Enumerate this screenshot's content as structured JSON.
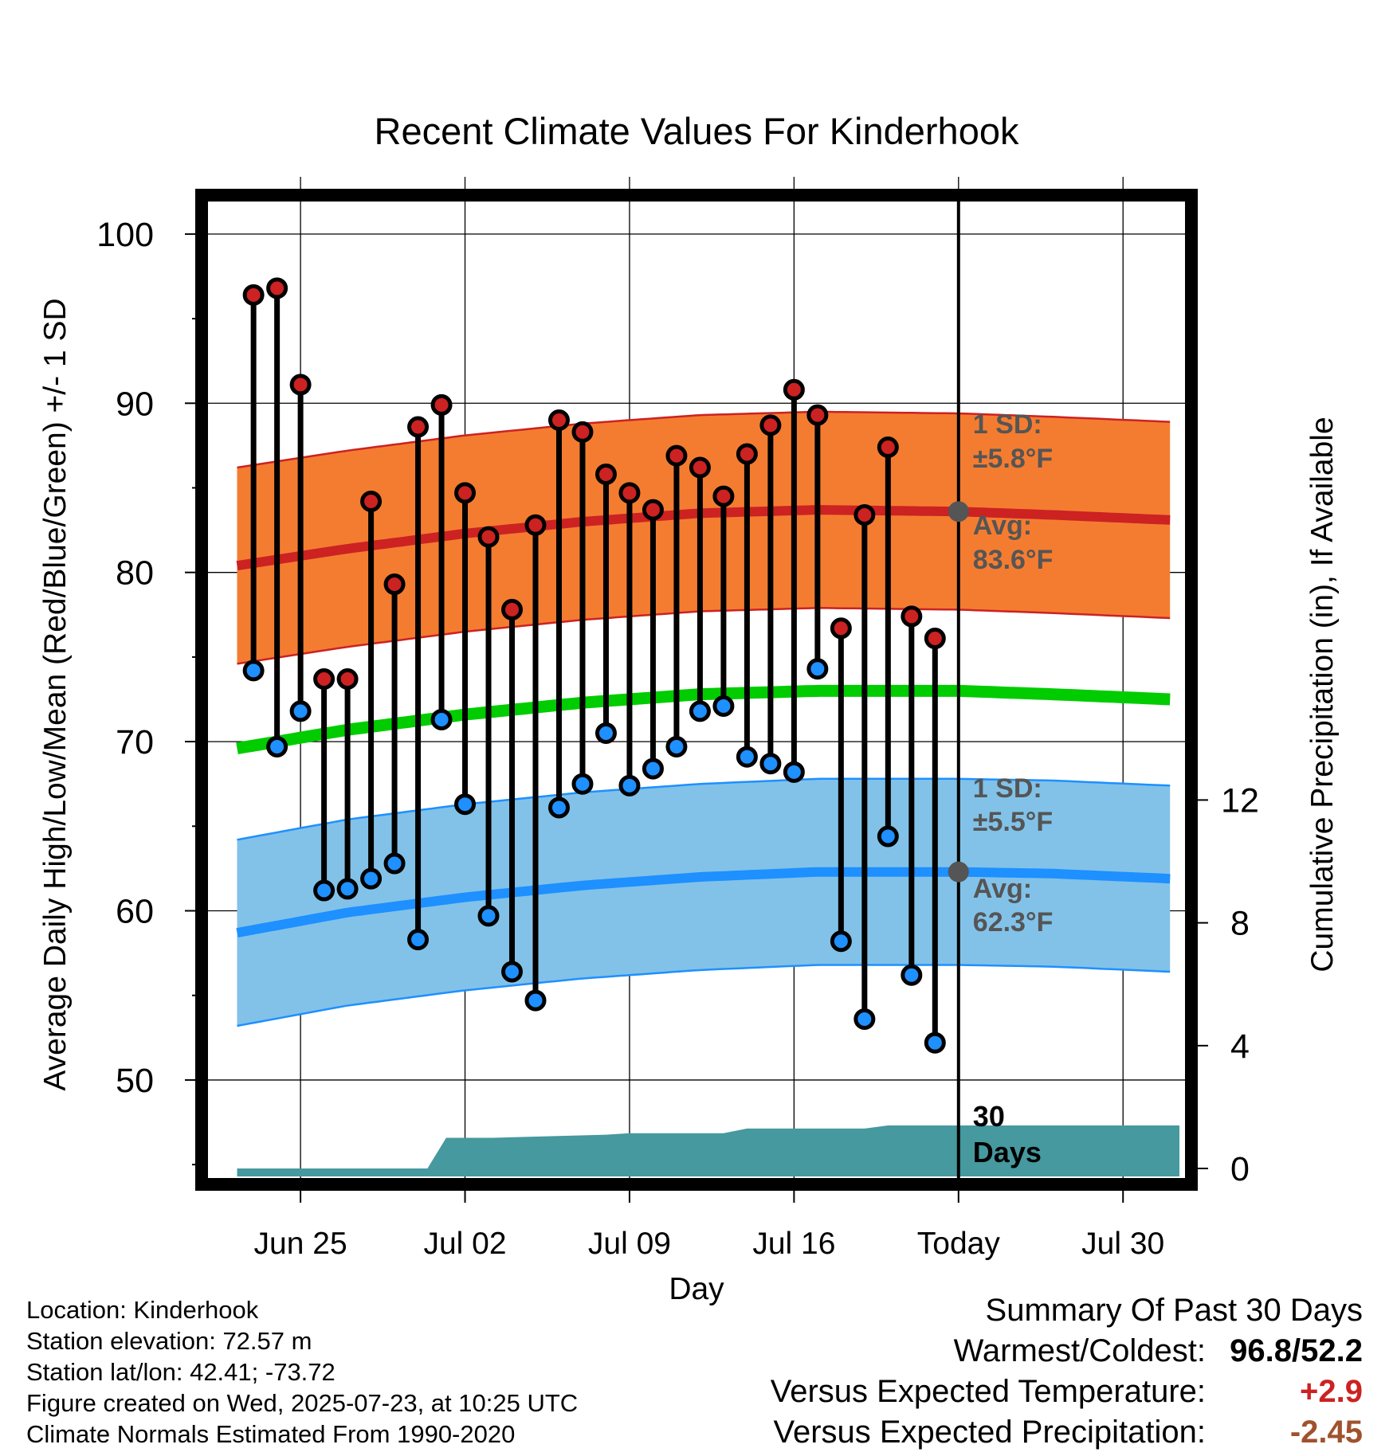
{
  "chart_data": {
    "type": "line",
    "title": "Recent Climate Values For Kinderhook",
    "xlabel": "Day",
    "ylabel": "Average Daily High/Low/Mean (Red/Blue/Green) +/- 1 SD",
    "y2label": "Cumulative Precipitation (in), If Available",
    "ylim": [
      44.3,
      102.3
    ],
    "y2lim": [
      0,
      31.7
    ],
    "x_tick_labels": [
      "Jun 25",
      "Jul 02",
      "Jul 09",
      "Jul 16",
      "Today",
      "Jul 30"
    ],
    "x_tick_days": [
      3,
      10,
      17,
      24,
      31,
      38
    ],
    "xlim": [
      -0.7,
      40.4
    ],
    "y_ticks": [
      50,
      60,
      70,
      80,
      90,
      100
    ],
    "y2_ticks": [
      0,
      4,
      8,
      12
    ],
    "grid": true,
    "observed_days": [
      1,
      2,
      3,
      4,
      5,
      6,
      7,
      8,
      9,
      10,
      11,
      12,
      13,
      14,
      15,
      16,
      17,
      18,
      19,
      20,
      21,
      22,
      23,
      24,
      25,
      26,
      27,
      28,
      29,
      30
    ],
    "daily_high": [
      96.4,
      96.8,
      91.1,
      73.7,
      73.7,
      84.2,
      79.3,
      88.6,
      89.9,
      84.7,
      82.1,
      77.8,
      82.8,
      89.0,
      88.3,
      85.8,
      84.7,
      83.7,
      86.9,
      86.2,
      84.5,
      87.0,
      88.7,
      90.8,
      89.3,
      76.7,
      83.4,
      87.4,
      77.4,
      76.1
    ],
    "daily_low": [
      74.2,
      69.7,
      71.8,
      61.2,
      61.3,
      61.9,
      62.8,
      58.3,
      71.3,
      66.3,
      59.7,
      56.4,
      54.7,
      66.1,
      67.5,
      70.5,
      67.4,
      68.4,
      69.7,
      71.8,
      72.1,
      69.1,
      68.7,
      68.2,
      74.3,
      58.2,
      53.6,
      64.4,
      56.2,
      52.2
    ],
    "normal_days": [
      0.3,
      5,
      10,
      15,
      20,
      25,
      31,
      35,
      40
    ],
    "normal_high": [
      80.4,
      81.4,
      82.3,
      83.0,
      83.5,
      83.7,
      83.6,
      83.4,
      83.1
    ],
    "high_sd": 5.8,
    "normal_low": [
      58.7,
      59.9,
      60.8,
      61.5,
      62.0,
      62.3,
      62.3,
      62.2,
      61.9
    ],
    "low_sd": 5.5,
    "normal_mean": [
      69.6,
      70.7,
      71.6,
      72.3,
      72.8,
      73.0,
      73.0,
      72.8,
      72.5
    ],
    "precip_cumulative": {
      "days": [
        0.3,
        8.4,
        9.2,
        11.2,
        16,
        17,
        18.5,
        21,
        22,
        23,
        24,
        25,
        26,
        27,
        28,
        30,
        31,
        40.4
      ],
      "values": [
        0,
        0,
        1.0,
        1.0,
        1.1,
        1.15,
        1.15,
        1.15,
        1.3,
        1.3,
        1.3,
        1.3,
        1.3,
        1.3,
        1.4,
        1.4,
        1.4,
        1.4
      ]
    },
    "series": [
      {
        "name": "Red",
        "color": "#cc2222"
      },
      {
        "name": "Blue",
        "color": "#1e90ff"
      },
      {
        "name": "Green",
        "color": "#00cc00"
      }
    ],
    "annotations": {
      "high_sd_line1": "1 SD:",
      "high_sd_line2": "±5.8°F",
      "high_avg_line1": "Avg:",
      "high_avg_line2": "83.6°F",
      "low_sd_line1": "1 SD:",
      "low_sd_line2": "±5.5°F",
      "low_avg_line1": "Avg:",
      "low_avg_line2": "62.3°F",
      "days_line1": "30",
      "days_line2": "Days"
    }
  },
  "colors": {
    "high_band": "#f47c30",
    "high_line": "#cc2222",
    "low_band": "#82c2e8",
    "low_line": "#1e90ff",
    "mean_line": "#00cc00",
    "precip_fill": "#46999e",
    "high_marker": "#cc2222",
    "low_marker": "#1e90ff",
    "annotation_text": "#555555",
    "warm_value": "#cc2222",
    "precip_value": "#a0522d"
  },
  "station_info": {
    "location": "Location: Kinderhook",
    "elevation": "Station elevation: 72.57 m",
    "latlon": "Station lat/lon: 42.41; -73.72",
    "created": "Figure created on Wed, 2025-07-23, at 10:25 UTC",
    "normals": "Climate Normals Estimated From 1990-2020"
  },
  "summary": {
    "title": "Summary Of Past 30 Days",
    "warm_cold_label": "Warmest/Coldest:",
    "warm_cold_value": "96.8/52.2",
    "temp_label": "Versus Expected Temperature:",
    "temp_value": "+2.9",
    "precip_label": "Versus Expected Precipitation:",
    "precip_value": "-2.45"
  }
}
